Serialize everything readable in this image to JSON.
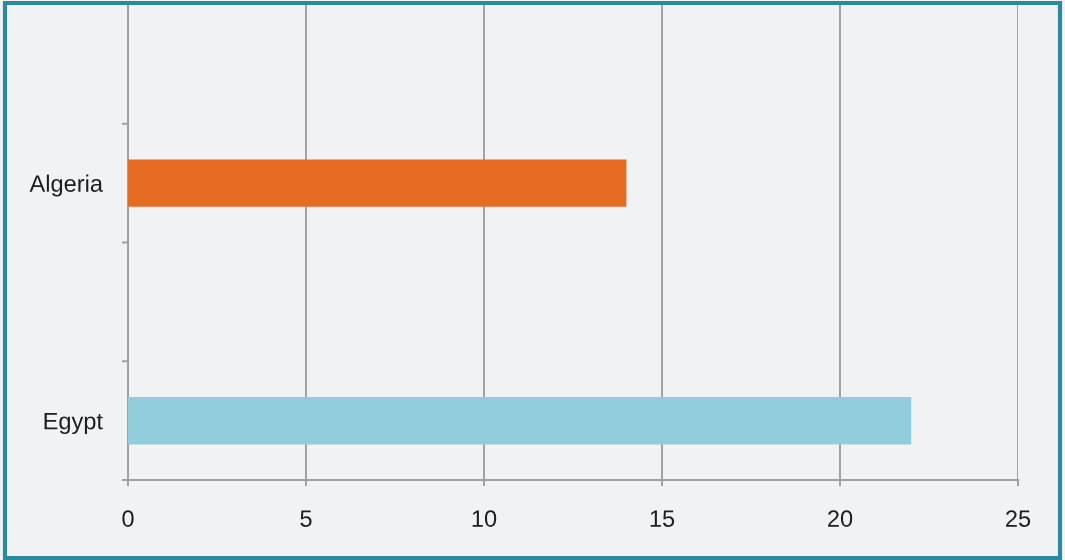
{
  "chart_data": {
    "type": "bar",
    "orientation": "horizontal",
    "categories": [
      null,
      "Algeria",
      null,
      "Egypt"
    ],
    "values": [
      null,
      14,
      null,
      22
    ],
    "colors": [
      null,
      "#e66c24",
      null,
      "#92cddc"
    ],
    "xlim": [
      0,
      25
    ],
    "xticks": [
      0,
      5,
      10,
      15,
      20,
      25
    ],
    "grid": "x"
  }
}
